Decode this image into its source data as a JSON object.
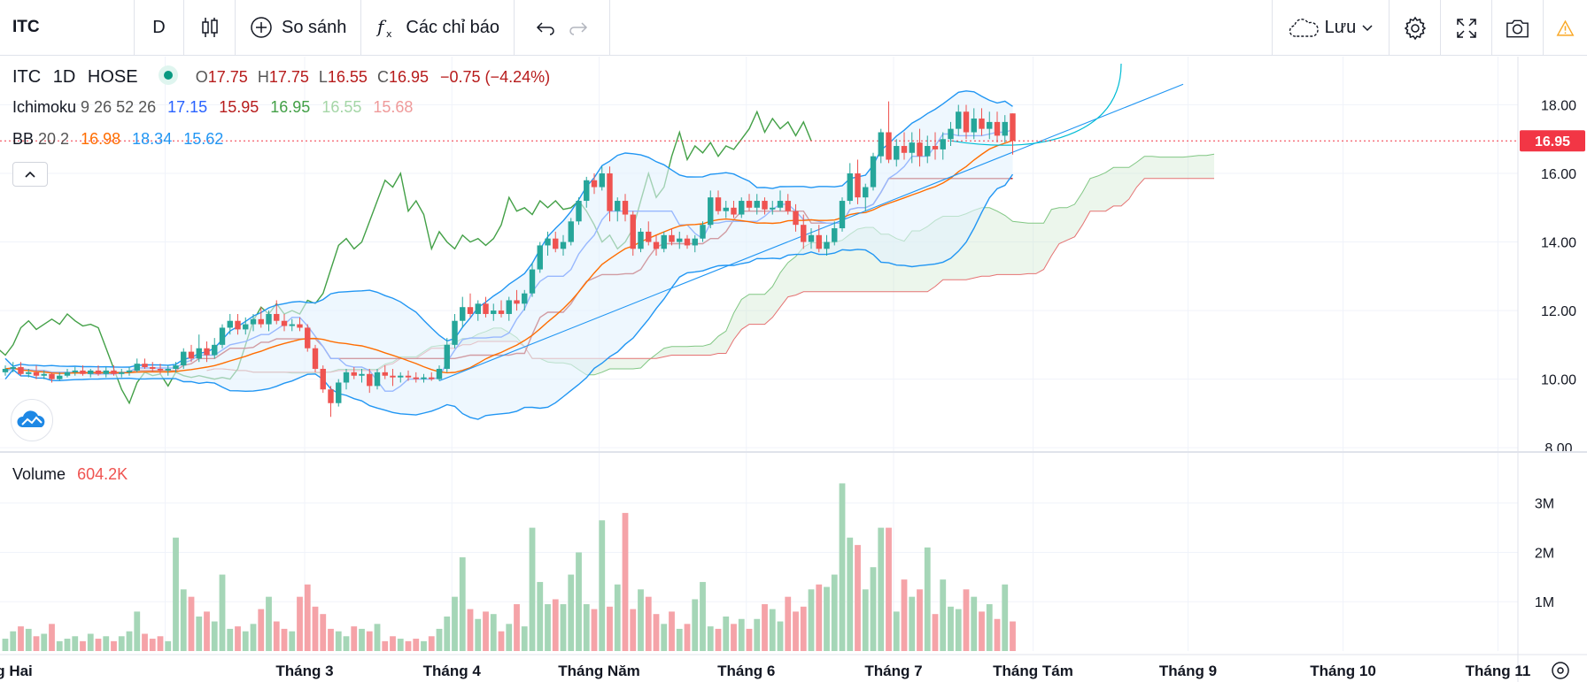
{
  "toolbar": {
    "symbol": "ITC",
    "interval": "D",
    "compare_label": "So sánh",
    "indicators_label": "Các chỉ báo",
    "save_label": "Lưu"
  },
  "legend": {
    "symbol": "ITC",
    "interval": "1D",
    "exchange": "HOSE",
    "open_label": "O",
    "open": "17.75",
    "high_label": "H",
    "high": "17.75",
    "low_label": "L",
    "low": "16.55",
    "close_label": "C",
    "close": "16.95",
    "change": "−0.75 (−4.24%)",
    "ichimoku_label": "Ichimoku",
    "ichimoku_params": "9 26 52 26",
    "ichimoku_values": [
      "17.15",
      "15.95",
      "16.95",
      "16.55",
      "15.68"
    ],
    "bb_label": "BB",
    "bb_params": "20 2",
    "bb_values": [
      "16.98",
      "18.34",
      "15.62"
    ],
    "volume_label": "Volume",
    "volume_value": "604.2K"
  },
  "colors": {
    "up": "#26a69a",
    "down": "#ef5350",
    "up_soft": "#a5d6b7",
    "down_soft": "#f5a3a8",
    "tenkan": "#2962ff",
    "kijun": "#b71c1c",
    "lagging": "#43a047",
    "spanA": "#81c784",
    "spanB": "#e57373",
    "bb_band": "#2196f3",
    "bb_basis": "#ff6d00",
    "price_tag": "#f23645"
  },
  "chart_data": {
    "type": "candlestick",
    "price_axis_ticks": [
      "8.00",
      "10.00",
      "12.00",
      "14.00",
      "16.00",
      "18.00"
    ],
    "price_range": [
      7.9,
      19.2
    ],
    "last_price_tag": "16.95",
    "volume_axis_ticks": [
      "1M",
      "2M",
      "3M"
    ],
    "volume_range": [
      0,
      3.3
    ],
    "time_axis_labels": [
      "g Hai",
      "Tháng 3",
      "Tháng 4",
      "Tháng Năm",
      "Tháng 6",
      "Tháng 7",
      "Tháng Tám",
      "Tháng 9",
      "Tháng 10",
      "Tháng 11"
    ],
    "candles": [
      {
        "o": 10.2,
        "h": 10.4,
        "l": 10.1,
        "c": 10.3,
        "v": 0.25
      },
      {
        "o": 10.3,
        "h": 10.5,
        "l": 10.2,
        "c": 10.35,
        "v": 0.4
      },
      {
        "o": 10.35,
        "h": 10.5,
        "l": 10.1,
        "c": 10.15,
        "v": 0.5
      },
      {
        "o": 10.15,
        "h": 10.3,
        "l": 10.05,
        "c": 10.2,
        "v": 0.45
      },
      {
        "o": 10.2,
        "h": 10.4,
        "l": 10.0,
        "c": 10.1,
        "v": 0.3
      },
      {
        "o": 10.1,
        "h": 10.25,
        "l": 10.0,
        "c": 10.15,
        "v": 0.35
      },
      {
        "o": 10.15,
        "h": 10.2,
        "l": 9.9,
        "c": 10.0,
        "v": 0.55
      },
      {
        "o": 10.0,
        "h": 10.2,
        "l": 9.95,
        "c": 10.1,
        "v": 0.2
      },
      {
        "o": 10.1,
        "h": 10.3,
        "l": 10.05,
        "c": 10.2,
        "v": 0.25
      },
      {
        "o": 10.2,
        "h": 10.35,
        "l": 10.1,
        "c": 10.25,
        "v": 0.3
      },
      {
        "o": 10.25,
        "h": 10.4,
        "l": 10.1,
        "c": 10.15,
        "v": 0.2
      },
      {
        "o": 10.15,
        "h": 10.3,
        "l": 10.05,
        "c": 10.25,
        "v": 0.35
      },
      {
        "o": 10.25,
        "h": 10.4,
        "l": 10.1,
        "c": 10.15,
        "v": 0.25
      },
      {
        "o": 10.15,
        "h": 10.35,
        "l": 10.05,
        "c": 10.25,
        "v": 0.3
      },
      {
        "o": 10.25,
        "h": 10.4,
        "l": 10.1,
        "c": 10.15,
        "v": 0.2
      },
      {
        "o": 10.15,
        "h": 10.3,
        "l": 10.05,
        "c": 10.2,
        "v": 0.3
      },
      {
        "o": 10.2,
        "h": 10.35,
        "l": 10.1,
        "c": 10.25,
        "v": 0.4
      },
      {
        "o": 10.25,
        "h": 10.6,
        "l": 10.2,
        "c": 10.45,
        "v": 0.8
      },
      {
        "o": 10.45,
        "h": 10.6,
        "l": 10.3,
        "c": 10.35,
        "v": 0.35
      },
      {
        "o": 10.35,
        "h": 10.5,
        "l": 10.2,
        "c": 10.3,
        "v": 0.25
      },
      {
        "o": 10.3,
        "h": 10.45,
        "l": 10.15,
        "c": 10.25,
        "v": 0.3
      },
      {
        "o": 10.25,
        "h": 10.4,
        "l": 10.1,
        "c": 10.3,
        "v": 0.2
      },
      {
        "o": 10.3,
        "h": 10.5,
        "l": 10.2,
        "c": 10.4,
        "v": 2.3
      },
      {
        "o": 10.4,
        "h": 10.9,
        "l": 10.3,
        "c": 10.8,
        "v": 1.25
      },
      {
        "o": 10.8,
        "h": 11.0,
        "l": 10.5,
        "c": 10.6,
        "v": 1.1
      },
      {
        "o": 10.6,
        "h": 11.3,
        "l": 10.5,
        "c": 10.9,
        "v": 0.7
      },
      {
        "o": 10.9,
        "h": 11.1,
        "l": 10.5,
        "c": 10.7,
        "v": 0.8
      },
      {
        "o": 10.7,
        "h": 11.2,
        "l": 10.6,
        "c": 11.0,
        "v": 0.6
      },
      {
        "o": 11.0,
        "h": 11.6,
        "l": 10.9,
        "c": 11.5,
        "v": 1.55
      },
      {
        "o": 11.5,
        "h": 11.9,
        "l": 11.3,
        "c": 11.7,
        "v": 0.45
      },
      {
        "o": 11.7,
        "h": 11.9,
        "l": 11.3,
        "c": 11.45,
        "v": 0.5
      },
      {
        "o": 11.45,
        "h": 11.8,
        "l": 11.3,
        "c": 11.6,
        "v": 0.4
      },
      {
        "o": 11.6,
        "h": 11.9,
        "l": 11.4,
        "c": 11.75,
        "v": 0.55
      },
      {
        "o": 11.75,
        "h": 12.1,
        "l": 11.5,
        "c": 11.6,
        "v": 0.85
      },
      {
        "o": 11.6,
        "h": 12.0,
        "l": 11.4,
        "c": 11.9,
        "v": 1.1
      },
      {
        "o": 11.9,
        "h": 12.3,
        "l": 11.6,
        "c": 11.7,
        "v": 0.6
      },
      {
        "o": 11.7,
        "h": 11.9,
        "l": 11.4,
        "c": 11.55,
        "v": 0.45
      },
      {
        "o": 11.55,
        "h": 11.75,
        "l": 11.4,
        "c": 11.6,
        "v": 0.4
      },
      {
        "o": 11.6,
        "h": 11.8,
        "l": 11.4,
        "c": 11.5,
        "v": 1.1
      },
      {
        "o": 11.5,
        "h": 11.6,
        "l": 10.8,
        "c": 10.9,
        "v": 1.35
      },
      {
        "o": 10.9,
        "h": 11.0,
        "l": 10.2,
        "c": 10.3,
        "v": 0.9
      },
      {
        "o": 10.3,
        "h": 10.4,
        "l": 9.6,
        "c": 9.7,
        "v": 0.75
      },
      {
        "o": 9.7,
        "h": 9.8,
        "l": 8.9,
        "c": 9.3,
        "v": 0.45
      },
      {
        "o": 9.3,
        "h": 10.0,
        "l": 9.2,
        "c": 9.9,
        "v": 0.4
      },
      {
        "o": 9.9,
        "h": 10.3,
        "l": 9.7,
        "c": 10.2,
        "v": 0.3
      },
      {
        "o": 10.2,
        "h": 10.35,
        "l": 10.0,
        "c": 10.1,
        "v": 0.5
      },
      {
        "o": 10.1,
        "h": 10.3,
        "l": 9.9,
        "c": 10.15,
        "v": 0.45
      },
      {
        "o": 10.15,
        "h": 10.3,
        "l": 9.6,
        "c": 9.8,
        "v": 0.4
      },
      {
        "o": 9.8,
        "h": 10.3,
        "l": 9.7,
        "c": 10.2,
        "v": 0.55
      },
      {
        "o": 10.2,
        "h": 10.4,
        "l": 10.0,
        "c": 10.1,
        "v": 0.2
      },
      {
        "o": 10.1,
        "h": 10.3,
        "l": 9.8,
        "c": 10.05,
        "v": 0.3
      },
      {
        "o": 10.05,
        "h": 10.2,
        "l": 9.9,
        "c": 10.1,
        "v": 0.25
      },
      {
        "o": 10.1,
        "h": 10.25,
        "l": 9.95,
        "c": 10.05,
        "v": 0.2
      },
      {
        "o": 10.05,
        "h": 10.2,
        "l": 9.9,
        "c": 10.0,
        "v": 0.25
      },
      {
        "o": 10.0,
        "h": 10.15,
        "l": 9.9,
        "c": 10.05,
        "v": 0.2
      },
      {
        "o": 10.05,
        "h": 10.2,
        "l": 9.95,
        "c": 10.0,
        "v": 0.3
      },
      {
        "o": 10.0,
        "h": 10.4,
        "l": 9.95,
        "c": 10.3,
        "v": 0.45
      },
      {
        "o": 10.3,
        "h": 11.2,
        "l": 10.2,
        "c": 11.0,
        "v": 0.7
      },
      {
        "o": 11.0,
        "h": 11.9,
        "l": 10.9,
        "c": 11.7,
        "v": 1.1
      },
      {
        "o": 11.7,
        "h": 12.4,
        "l": 11.5,
        "c": 12.1,
        "v": 1.9
      },
      {
        "o": 12.1,
        "h": 12.5,
        "l": 11.8,
        "c": 11.9,
        "v": 0.85
      },
      {
        "o": 11.9,
        "h": 12.3,
        "l": 11.7,
        "c": 12.2,
        "v": 0.65
      },
      {
        "o": 12.2,
        "h": 12.4,
        "l": 11.8,
        "c": 11.9,
        "v": 0.8
      },
      {
        "o": 11.9,
        "h": 12.2,
        "l": 11.7,
        "c": 12.0,
        "v": 0.75
      },
      {
        "o": 12.0,
        "h": 12.3,
        "l": 11.8,
        "c": 11.9,
        "v": 0.4
      },
      {
        "o": 11.9,
        "h": 12.4,
        "l": 11.7,
        "c": 12.3,
        "v": 0.55
      },
      {
        "o": 12.3,
        "h": 12.6,
        "l": 12.0,
        "c": 12.2,
        "v": 0.95
      },
      {
        "o": 12.2,
        "h": 12.6,
        "l": 12.0,
        "c": 12.5,
        "v": 0.5
      },
      {
        "o": 12.5,
        "h": 13.4,
        "l": 12.4,
        "c": 13.2,
        "v": 2.5
      },
      {
        "o": 13.2,
        "h": 14.0,
        "l": 13.1,
        "c": 13.9,
        "v": 1.4
      },
      {
        "o": 13.9,
        "h": 14.3,
        "l": 13.6,
        "c": 14.1,
        "v": 0.95
      },
      {
        "o": 14.1,
        "h": 14.3,
        "l": 13.7,
        "c": 13.8,
        "v": 1.05
      },
      {
        "o": 13.8,
        "h": 14.2,
        "l": 13.6,
        "c": 14.0,
        "v": 0.95
      },
      {
        "o": 14.0,
        "h": 14.7,
        "l": 13.9,
        "c": 14.6,
        "v": 1.55
      },
      {
        "o": 14.6,
        "h": 15.3,
        "l": 14.5,
        "c": 15.2,
        "v": 2.0
      },
      {
        "o": 15.2,
        "h": 15.9,
        "l": 15.0,
        "c": 15.8,
        "v": 0.95
      },
      {
        "o": 15.8,
        "h": 16.0,
        "l": 15.4,
        "c": 15.6,
        "v": 0.85
      },
      {
        "o": 15.6,
        "h": 16.2,
        "l": 15.5,
        "c": 16.0,
        "v": 2.65
      },
      {
        "o": 16.0,
        "h": 16.2,
        "l": 14.6,
        "c": 14.9,
        "v": 0.9
      },
      {
        "o": 14.9,
        "h": 15.3,
        "l": 14.6,
        "c": 15.2,
        "v": 1.35
      },
      {
        "o": 15.2,
        "h": 15.4,
        "l": 14.6,
        "c": 14.8,
        "v": 2.8
      },
      {
        "o": 14.8,
        "h": 14.9,
        "l": 13.6,
        "c": 13.8,
        "v": 0.85
      },
      {
        "o": 13.8,
        "h": 14.4,
        "l": 13.7,
        "c": 14.3,
        "v": 1.25
      },
      {
        "o": 14.3,
        "h": 14.6,
        "l": 13.9,
        "c": 14.0,
        "v": 1.1
      },
      {
        "o": 14.0,
        "h": 14.2,
        "l": 13.6,
        "c": 13.8,
        "v": 0.75
      },
      {
        "o": 13.8,
        "h": 14.3,
        "l": 13.7,
        "c": 14.2,
        "v": 0.55
      },
      {
        "o": 14.2,
        "h": 14.4,
        "l": 13.9,
        "c": 14.0,
        "v": 0.8
      },
      {
        "o": 14.0,
        "h": 14.3,
        "l": 13.8,
        "c": 14.1,
        "v": 0.45
      },
      {
        "o": 14.1,
        "h": 14.2,
        "l": 13.8,
        "c": 13.9,
        "v": 0.55
      },
      {
        "o": 13.9,
        "h": 14.2,
        "l": 13.7,
        "c": 14.1,
        "v": 1.05
      },
      {
        "o": 14.1,
        "h": 14.6,
        "l": 14.0,
        "c": 14.5,
        "v": 1.4
      },
      {
        "o": 14.5,
        "h": 15.5,
        "l": 14.4,
        "c": 15.3,
        "v": 0.5
      },
      {
        "o": 15.3,
        "h": 15.5,
        "l": 14.8,
        "c": 14.9,
        "v": 0.45
      },
      {
        "o": 14.9,
        "h": 15.2,
        "l": 14.7,
        "c": 15.0,
        "v": 0.7
      },
      {
        "o": 15.0,
        "h": 15.2,
        "l": 14.7,
        "c": 14.8,
        "v": 0.55
      },
      {
        "o": 14.8,
        "h": 15.3,
        "l": 14.7,
        "c": 15.2,
        "v": 0.65
      },
      {
        "o": 15.2,
        "h": 15.4,
        "l": 14.9,
        "c": 15.0,
        "v": 0.45
      },
      {
        "o": 15.0,
        "h": 15.4,
        "l": 14.8,
        "c": 15.2,
        "v": 0.65
      },
      {
        "o": 15.2,
        "h": 15.3,
        "l": 14.8,
        "c": 14.95,
        "v": 0.95
      },
      {
        "o": 14.95,
        "h": 15.2,
        "l": 14.8,
        "c": 15.0,
        "v": 0.85
      },
      {
        "o": 15.0,
        "h": 15.5,
        "l": 14.9,
        "c": 15.2,
        "v": 0.6
      },
      {
        "o": 15.2,
        "h": 15.4,
        "l": 14.8,
        "c": 14.9,
        "v": 1.1
      },
      {
        "o": 14.9,
        "h": 15.1,
        "l": 14.3,
        "c": 14.5,
        "v": 0.8
      },
      {
        "o": 14.5,
        "h": 14.8,
        "l": 13.8,
        "c": 14.0,
        "v": 0.9
      },
      {
        "o": 14.0,
        "h": 14.4,
        "l": 13.8,
        "c": 14.2,
        "v": 1.25
      },
      {
        "o": 14.2,
        "h": 14.5,
        "l": 13.7,
        "c": 13.8,
        "v": 1.35
      },
      {
        "o": 13.8,
        "h": 14.2,
        "l": 13.6,
        "c": 14.0,
        "v": 1.3
      },
      {
        "o": 14.0,
        "h": 14.6,
        "l": 13.9,
        "c": 14.4,
        "v": 1.55
      },
      {
        "o": 14.4,
        "h": 15.3,
        "l": 14.3,
        "c": 15.2,
        "v": 3.4
      },
      {
        "o": 15.2,
        "h": 16.3,
        "l": 15.1,
        "c": 16.0,
        "v": 2.3
      },
      {
        "o": 16.0,
        "h": 16.4,
        "l": 15.1,
        "c": 15.3,
        "v": 2.15
      },
      {
        "o": 15.3,
        "h": 15.7,
        "l": 14.9,
        "c": 15.6,
        "v": 1.25
      },
      {
        "o": 15.6,
        "h": 16.6,
        "l": 15.5,
        "c": 16.5,
        "v": 1.7
      },
      {
        "o": 16.5,
        "h": 17.3,
        "l": 16.3,
        "c": 17.2,
        "v": 2.5
      },
      {
        "o": 17.2,
        "h": 18.1,
        "l": 16.3,
        "c": 16.4,
        "v": 2.5
      },
      {
        "o": 16.4,
        "h": 17.0,
        "l": 16.2,
        "c": 16.8,
        "v": 0.8
      },
      {
        "o": 16.8,
        "h": 17.2,
        "l": 16.4,
        "c": 16.6,
        "v": 1.45
      },
      {
        "o": 16.6,
        "h": 17.2,
        "l": 16.3,
        "c": 16.9,
        "v": 1.1
      },
      {
        "o": 16.9,
        "h": 17.3,
        "l": 16.2,
        "c": 16.5,
        "v": 1.25
      },
      {
        "o": 16.5,
        "h": 17.1,
        "l": 16.3,
        "c": 16.8,
        "v": 2.1
      },
      {
        "o": 16.8,
        "h": 17.2,
        "l": 16.4,
        "c": 16.7,
        "v": 0.75
      },
      {
        "o": 16.7,
        "h": 17.2,
        "l": 16.4,
        "c": 17.0,
        "v": 1.45
      },
      {
        "o": 17.0,
        "h": 17.5,
        "l": 16.8,
        "c": 17.3,
        "v": 0.9
      },
      {
        "o": 17.3,
        "h": 18.0,
        "l": 17.1,
        "c": 17.8,
        "v": 0.85
      },
      {
        "o": 17.8,
        "h": 18.0,
        "l": 17.0,
        "c": 17.2,
        "v": 1.25
      },
      {
        "o": 17.2,
        "h": 17.9,
        "l": 17.0,
        "c": 17.6,
        "v": 1.1
      },
      {
        "o": 17.6,
        "h": 17.9,
        "l": 17.1,
        "c": 17.3,
        "v": 0.8
      },
      {
        "o": 17.3,
        "h": 17.8,
        "l": 17.0,
        "c": 17.5,
        "v": 0.95
      },
      {
        "o": 17.5,
        "h": 17.8,
        "l": 16.9,
        "c": 17.1,
        "v": 0.65
      },
      {
        "o": 17.1,
        "h": 17.7,
        "l": 16.9,
        "c": 17.5,
        "v": 1.35
      },
      {
        "o": 17.75,
        "h": 17.75,
        "l": 16.55,
        "c": 16.95,
        "v": 0.6
      }
    ]
  }
}
